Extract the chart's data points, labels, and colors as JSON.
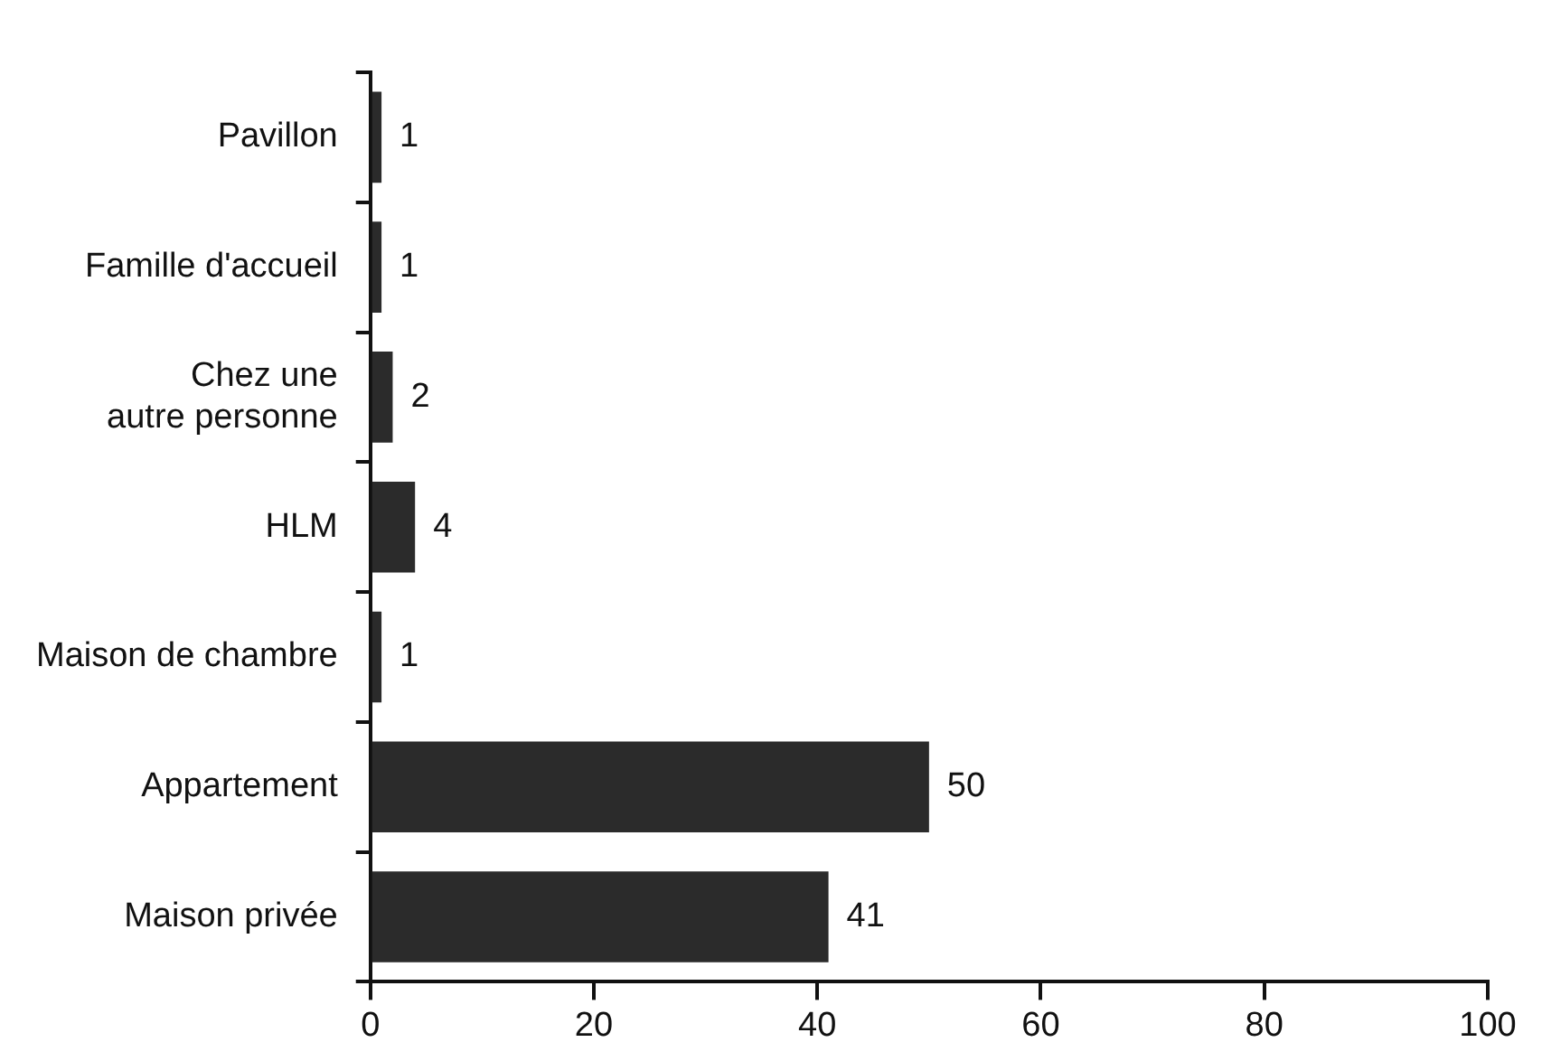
{
  "chart_data": {
    "type": "bar",
    "orientation": "horizontal",
    "categories": [
      "Pavillon",
      "Famille d'accueil",
      "Chez une autre personne",
      "HLM",
      "Maison de chambre",
      "Appartement",
      "Maison privée"
    ],
    "values": [
      1,
      1,
      2,
      4,
      1,
      50,
      41
    ],
    "color": "#2b2b2b",
    "xlim": [
      0,
      100
    ],
    "xticks": [
      0,
      20,
      40,
      60,
      80,
      100
    ],
    "grid": false,
    "legend": false,
    "data_labels": true
  }
}
